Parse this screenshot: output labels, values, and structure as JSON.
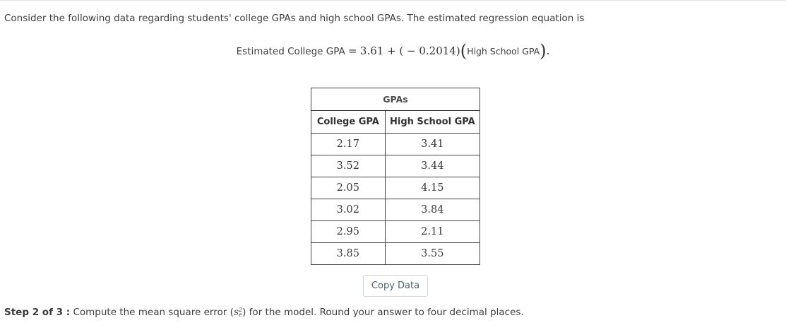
{
  "problem": {
    "intro": "Consider the following data regarding students' college GPAs and high school GPAs. The estimated regression equation is",
    "equation": {
      "lhs": "Estimated College GPA",
      "eq": "=",
      "intercept_expr": "3.61 + ( − 0.2014)",
      "variable": "High School GPA",
      "end": "."
    }
  },
  "table": {
    "caption": "GPAs",
    "columns": [
      "College GPA",
      "High School GPA"
    ],
    "rows": [
      [
        "2.17",
        "3.41"
      ],
      [
        "3.52",
        "3.44"
      ],
      [
        "2.05",
        "4.15"
      ],
      [
        "3.02",
        "3.84"
      ],
      [
        "2.95",
        "2.11"
      ],
      [
        "3.85",
        "3.55"
      ]
    ]
  },
  "copy_button": {
    "label": "Copy Data"
  },
  "step": {
    "label": "Step 2 of 3 :",
    "text_before": "Compute the mean square error (",
    "symbol_base": "s",
    "symbol_sup": "2",
    "symbol_sub": "e",
    "text_after": ") for the model. Round your answer to four decimal places."
  }
}
